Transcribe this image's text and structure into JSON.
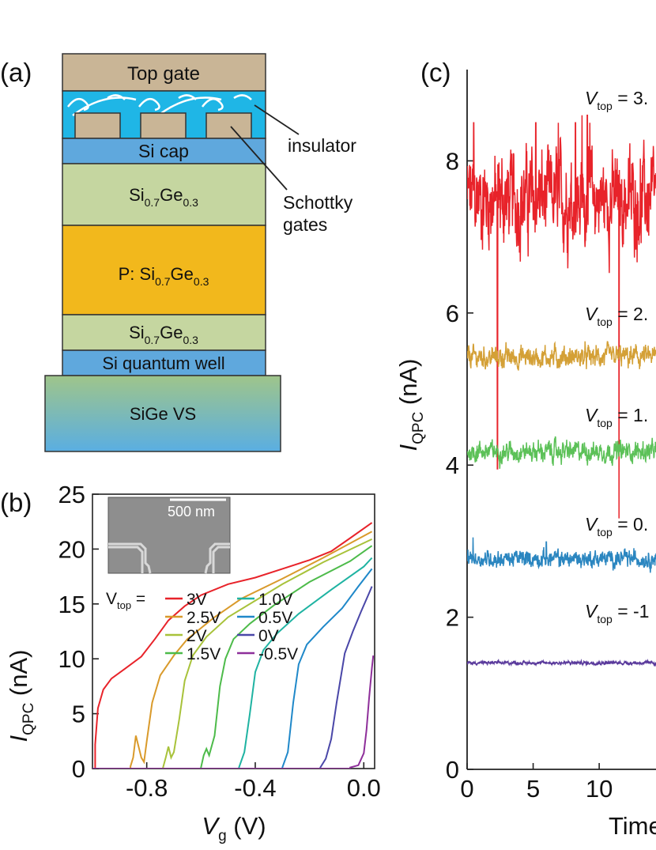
{
  "panel_a": {
    "label": "(a)",
    "layers": {
      "top_gate": "Top gate",
      "si_cap": "Si  cap",
      "sige_upper": {
        "main": "Si",
        "sub1": "0.7",
        "mid": "Ge",
        "sub2": "0.3"
      },
      "doped": {
        "prefix": "P: ",
        "main": "Si",
        "sub1": "0.7",
        "mid": "Ge",
        "sub2": "0.3"
      },
      "sige_lower": {
        "main": "Si",
        "sub1": "0.7",
        "mid": "Ge",
        "sub2": "0.3"
      },
      "quantum_well": "Si quantum well",
      "vs": "SiGe VS"
    },
    "annotations": {
      "insulator": "insulator",
      "schottky_1": "Schottky",
      "schottky_2": "gates"
    },
    "colors": {
      "gate": "#c9b596",
      "insulator": "#1fb6e6",
      "cap": "#5fa8dd",
      "sige": "#c5d6a0",
      "doped": "#f2b81c"
    }
  },
  "panel_b": {
    "label": "(b)",
    "inset_scale": "500 nm",
    "legend_prefix": {
      "main": "V",
      "sub": "top",
      "eq": " ="
    },
    "ylabel": {
      "main": "I",
      "sub": "QPC",
      "unit": " (nA)"
    },
    "xlabel": {
      "main": "V",
      "sub": "g",
      "unit": " (V)"
    }
  },
  "panel_c": {
    "label": "(c)",
    "ylabel": {
      "main": "I",
      "sub": "QPC",
      "unit": " (nA)"
    },
    "xlabel": "Time",
    "trace_labels": [
      {
        "main": "V",
        "sub": "top",
        "rest": " = 3."
      },
      {
        "main": "V",
        "sub": "top",
        "rest": " = 2."
      },
      {
        "main": "V",
        "sub": "top",
        "rest": " = 1."
      },
      {
        "main": "V",
        "sub": "top",
        "rest": " = 0."
      },
      {
        "main": "V",
        "sub": "top",
        "rest": " = -1"
      }
    ]
  },
  "chart_data": [
    {
      "type": "line",
      "title": "",
      "xlabel": "Vg (V)",
      "ylabel": "IQPC (nA)",
      "xlim": [
        -1.0,
        0.04
      ],
      "ylim": [
        0,
        25
      ],
      "xticks": [
        "-0.8",
        "-0.4",
        "0.0"
      ],
      "xtick_values": [
        -0.8,
        -0.4,
        0.0
      ],
      "yticks": [
        "0",
        "5",
        "10",
        "15",
        "20",
        "25"
      ],
      "ytick_values": [
        0,
        5,
        10,
        15,
        20,
        25
      ],
      "legend_title": "Vtop =",
      "series": [
        {
          "name": "3V",
          "color": "#e8232a",
          "points": [
            [
              -0.99,
              2.2
            ],
            [
              -0.98,
              5.5
            ],
            [
              -0.96,
              7.2
            ],
            [
              -0.93,
              8.2
            ],
            [
              -0.88,
              9.1
            ],
            [
              -0.82,
              10.2
            ],
            [
              -0.77,
              11.8
            ],
            [
              -0.72,
              13.5
            ],
            [
              -0.66,
              14.8
            ],
            [
              -0.6,
              15.8
            ],
            [
              -0.5,
              16.8
            ],
            [
              -0.4,
              17.4
            ],
            [
              -0.3,
              18.2
            ],
            [
              -0.2,
              19.0
            ],
            [
              -0.12,
              19.8
            ],
            [
              -0.05,
              21.0
            ],
            [
              0.03,
              22.4
            ]
          ]
        },
        {
          "name": "2.5V",
          "color": "#d99a2b",
          "points": [
            [
              -0.86,
              0.2
            ],
            [
              -0.85,
              1.0
            ],
            [
              -0.84,
              3.0
            ],
            [
              -0.82,
              1.0
            ],
            [
              -0.81,
              0.6
            ],
            [
              -0.8,
              2.5
            ],
            [
              -0.78,
              6.0
            ],
            [
              -0.75,
              8.5
            ],
            [
              -0.7,
              10.3
            ],
            [
              -0.65,
              11.8
            ],
            [
              -0.55,
              13.8
            ],
            [
              -0.45,
              15.5
            ],
            [
              -0.3,
              17.3
            ],
            [
              -0.15,
              19.2
            ],
            [
              0.03,
              21.6
            ]
          ]
        },
        {
          "name": "2V",
          "color": "#a8c23a",
          "points": [
            [
              -0.74,
              0.1
            ],
            [
              -0.73,
              1.0
            ],
            [
              -0.72,
              2.0
            ],
            [
              -0.71,
              1.0
            ],
            [
              -0.7,
              1.5
            ],
            [
              -0.68,
              4.5
            ],
            [
              -0.66,
              8.0
            ],
            [
              -0.63,
              10.3
            ],
            [
              -0.58,
              12.0
            ],
            [
              -0.5,
              13.8
            ],
            [
              -0.4,
              15.3
            ],
            [
              -0.3,
              16.8
            ],
            [
              -0.15,
              18.8
            ],
            [
              0.03,
              20.9
            ]
          ]
        },
        {
          "name": "1.5V",
          "color": "#4dbb4a",
          "points": [
            [
              -0.6,
              0.1
            ],
            [
              -0.59,
              1.2
            ],
            [
              -0.58,
              1.8
            ],
            [
              -0.57,
              1.2
            ],
            [
              -0.55,
              3.0
            ],
            [
              -0.53,
              7.5
            ],
            [
              -0.51,
              10.0
            ],
            [
              -0.48,
              11.8
            ],
            [
              -0.42,
              13.2
            ],
            [
              -0.33,
              14.9
            ],
            [
              -0.2,
              17.0
            ],
            [
              -0.05,
              18.9
            ],
            [
              0.03,
              20.3
            ]
          ]
        },
        {
          "name": "1.0V",
          "color": "#1fb3a2",
          "points": [
            [
              -0.46,
              0.1
            ],
            [
              -0.44,
              1.5
            ],
            [
              -0.42,
              5.0
            ],
            [
              -0.4,
              8.8
            ],
            [
              -0.37,
              10.8
            ],
            [
              -0.32,
              12.3
            ],
            [
              -0.24,
              14.1
            ],
            [
              -0.12,
              16.3
            ],
            [
              0.0,
              18.4
            ],
            [
              0.03,
              19.2
            ]
          ]
        },
        {
          "name": "0.5V",
          "color": "#1f88c9",
          "points": [
            [
              -0.3,
              0.1
            ],
            [
              -0.28,
              1.5
            ],
            [
              -0.26,
              6.0
            ],
            [
              -0.24,
              9.5
            ],
            [
              -0.21,
              11.3
            ],
            [
              -0.15,
              12.9
            ],
            [
              -0.08,
              14.6
            ],
            [
              -0.02,
              16.6
            ],
            [
              0.03,
              18.2
            ]
          ]
        },
        {
          "name": "0V",
          "color": "#4a47a8",
          "points": [
            [
              -0.16,
              0.1
            ],
            [
              -0.14,
              0.9
            ],
            [
              -0.12,
              2.7
            ],
            [
              -0.1,
              6.0
            ],
            [
              -0.07,
              10.5
            ],
            [
              -0.04,
              12.5
            ],
            [
              -0.01,
              14.3
            ],
            [
              0.02,
              16.0
            ],
            [
              0.03,
              16.6
            ]
          ]
        },
        {
          "name": "-0.5V",
          "color": "#8e2f9a",
          "points": [
            [
              -0.05,
              0.1
            ],
            [
              -0.02,
              0.3
            ],
            [
              0.0,
              1.4
            ],
            [
              0.01,
              3.5
            ],
            [
              0.02,
              6.5
            ],
            [
              0.03,
              9.2
            ],
            [
              0.035,
              10.3
            ]
          ]
        }
      ]
    },
    {
      "type": "line",
      "title": "",
      "xlabel": "Time",
      "ylabel": "IQPC (nA)",
      "xlim": [
        0,
        14.3
      ],
      "ylim": [
        0,
        9.2
      ],
      "xticks": [
        "0",
        "5",
        "10"
      ],
      "xtick_values": [
        0,
        5,
        10
      ],
      "yticks": [
        "0",
        "2",
        "4",
        "6",
        "8"
      ],
      "ytick_values": [
        0,
        2,
        4,
        6,
        8
      ],
      "series": [
        {
          "name": "Vtop = 3.",
          "color": "#e8232a",
          "mean": 7.5,
          "noise": 0.55,
          "dips": [
            [
              2.3,
              3.95
            ],
            [
              11.5,
              3.3
            ]
          ],
          "spikes": [
            [
              0.5,
              8.5
            ],
            [
              5.2,
              8.5
            ],
            [
              6.9,
              8.5
            ],
            [
              8.2,
              8.5
            ],
            [
              8.7,
              8.6
            ],
            [
              9.1,
              8.6
            ],
            [
              9.3,
              8.5
            ]
          ]
        },
        {
          "name": "Vtop = 2.",
          "color": "#d4a036",
          "mean": 5.42,
          "noise": 0.13
        },
        {
          "name": "Vtop = 1.",
          "color": "#5cc158",
          "mean": 4.18,
          "noise": 0.12
        },
        {
          "name": "Vtop = 0.",
          "color": "#2b86c0",
          "mean": 2.77,
          "noise": 0.1,
          "spikes": [
            [
              0.45,
              3.05
            ],
            [
              6.0,
              2.99
            ]
          ]
        },
        {
          "name": "Vtop = -1",
          "color": "#5a3a9c",
          "mean": 1.4,
          "noise": 0.02
        }
      ]
    }
  ]
}
